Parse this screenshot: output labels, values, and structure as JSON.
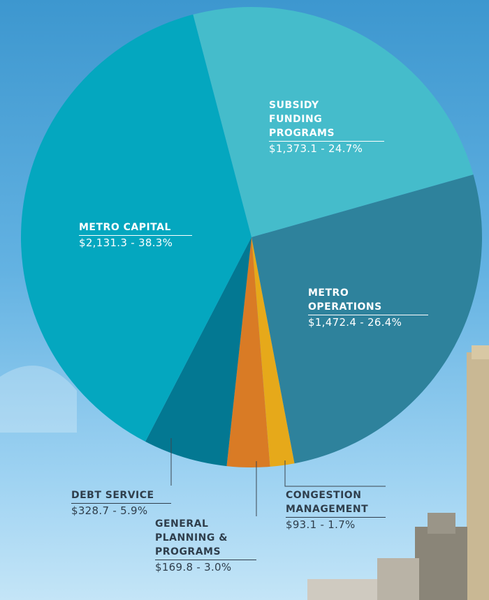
{
  "chart_data": {
    "type": "pie",
    "categories": [
      "SUBSIDY FUNDING PROGRAMS",
      "METRO OPERATIONS",
      "CONGESTION MANAGEMENT",
      "GENERAL PLANNING & PROGRAMS",
      "DEBT SERVICE",
      "METRO CAPITAL"
    ],
    "values": [
      24.7,
      26.4,
      1.7,
      3.0,
      5.9,
      38.3
    ],
    "value_labels": [
      "$1,373.1 - 24.7%",
      "$1,472.4 - 26.4%",
      "$93.1 - 1.7%",
      "$169.8 - 3.0%",
      "$328.7 - 5.9%",
      "$2,131.3 - 38.3%"
    ],
    "colors": [
      "#45bccb",
      "#2e829c",
      "#e6a91a",
      "#d97b25",
      "#037892",
      "#04a7bf"
    ]
  }
}
